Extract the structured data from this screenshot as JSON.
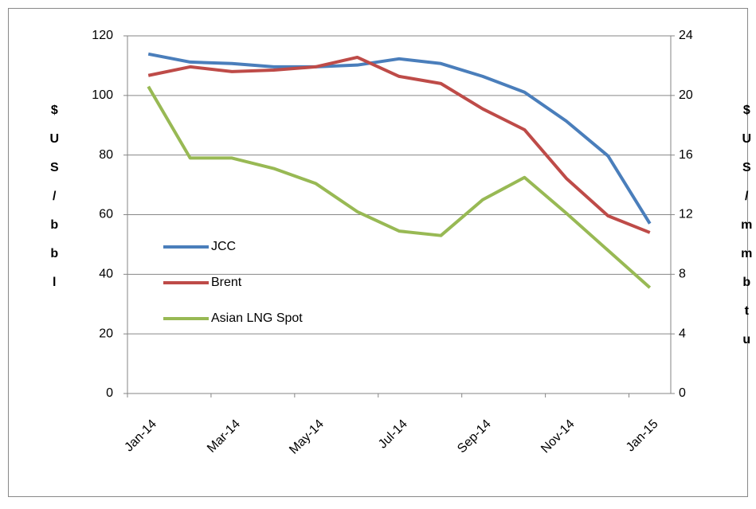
{
  "chart_data": {
    "type": "line",
    "categories": [
      "Jan-14",
      null,
      "Mar-14",
      null,
      "May-14",
      null,
      "Jul-14",
      null,
      "Sep-14",
      null,
      "Nov-14",
      null,
      "Jan-15"
    ],
    "series": [
      {
        "name": "JCC",
        "color": "#4a7ebb",
        "values": [
          113.9,
          111.2,
          110.7,
          109.6,
          109.6,
          110.2,
          112.3,
          110.7,
          106.4,
          101.1,
          91.4,
          79.7,
          57
        ]
      },
      {
        "name": "Brent",
        "color": "#be4b48",
        "values": [
          106.7,
          109.6,
          108,
          108.5,
          109.6,
          112.8,
          106.4,
          104,
          95.5,
          88.5,
          72.2,
          59.6,
          54
        ]
      },
      {
        "name": "Asian LNG Spot",
        "color": "#98b954",
        "axis": "y2",
        "values": [
          20.6,
          15.8,
          15.8,
          15.1,
          14.1,
          12.2,
          10.9,
          10.6,
          13.0,
          14.5,
          12.1,
          9.6,
          7.1
        ]
      }
    ],
    "ylabel": "$US/bbl",
    "y2label": "$US/mmbtu",
    "ylim": [
      0,
      120
    ],
    "yticks": [
      0,
      20,
      40,
      60,
      80,
      100,
      120
    ],
    "y2lim": [
      0,
      24
    ],
    "y2ticks": [
      0,
      4,
      8,
      12,
      16,
      20,
      24
    ],
    "grid": true,
    "legend": "left"
  }
}
